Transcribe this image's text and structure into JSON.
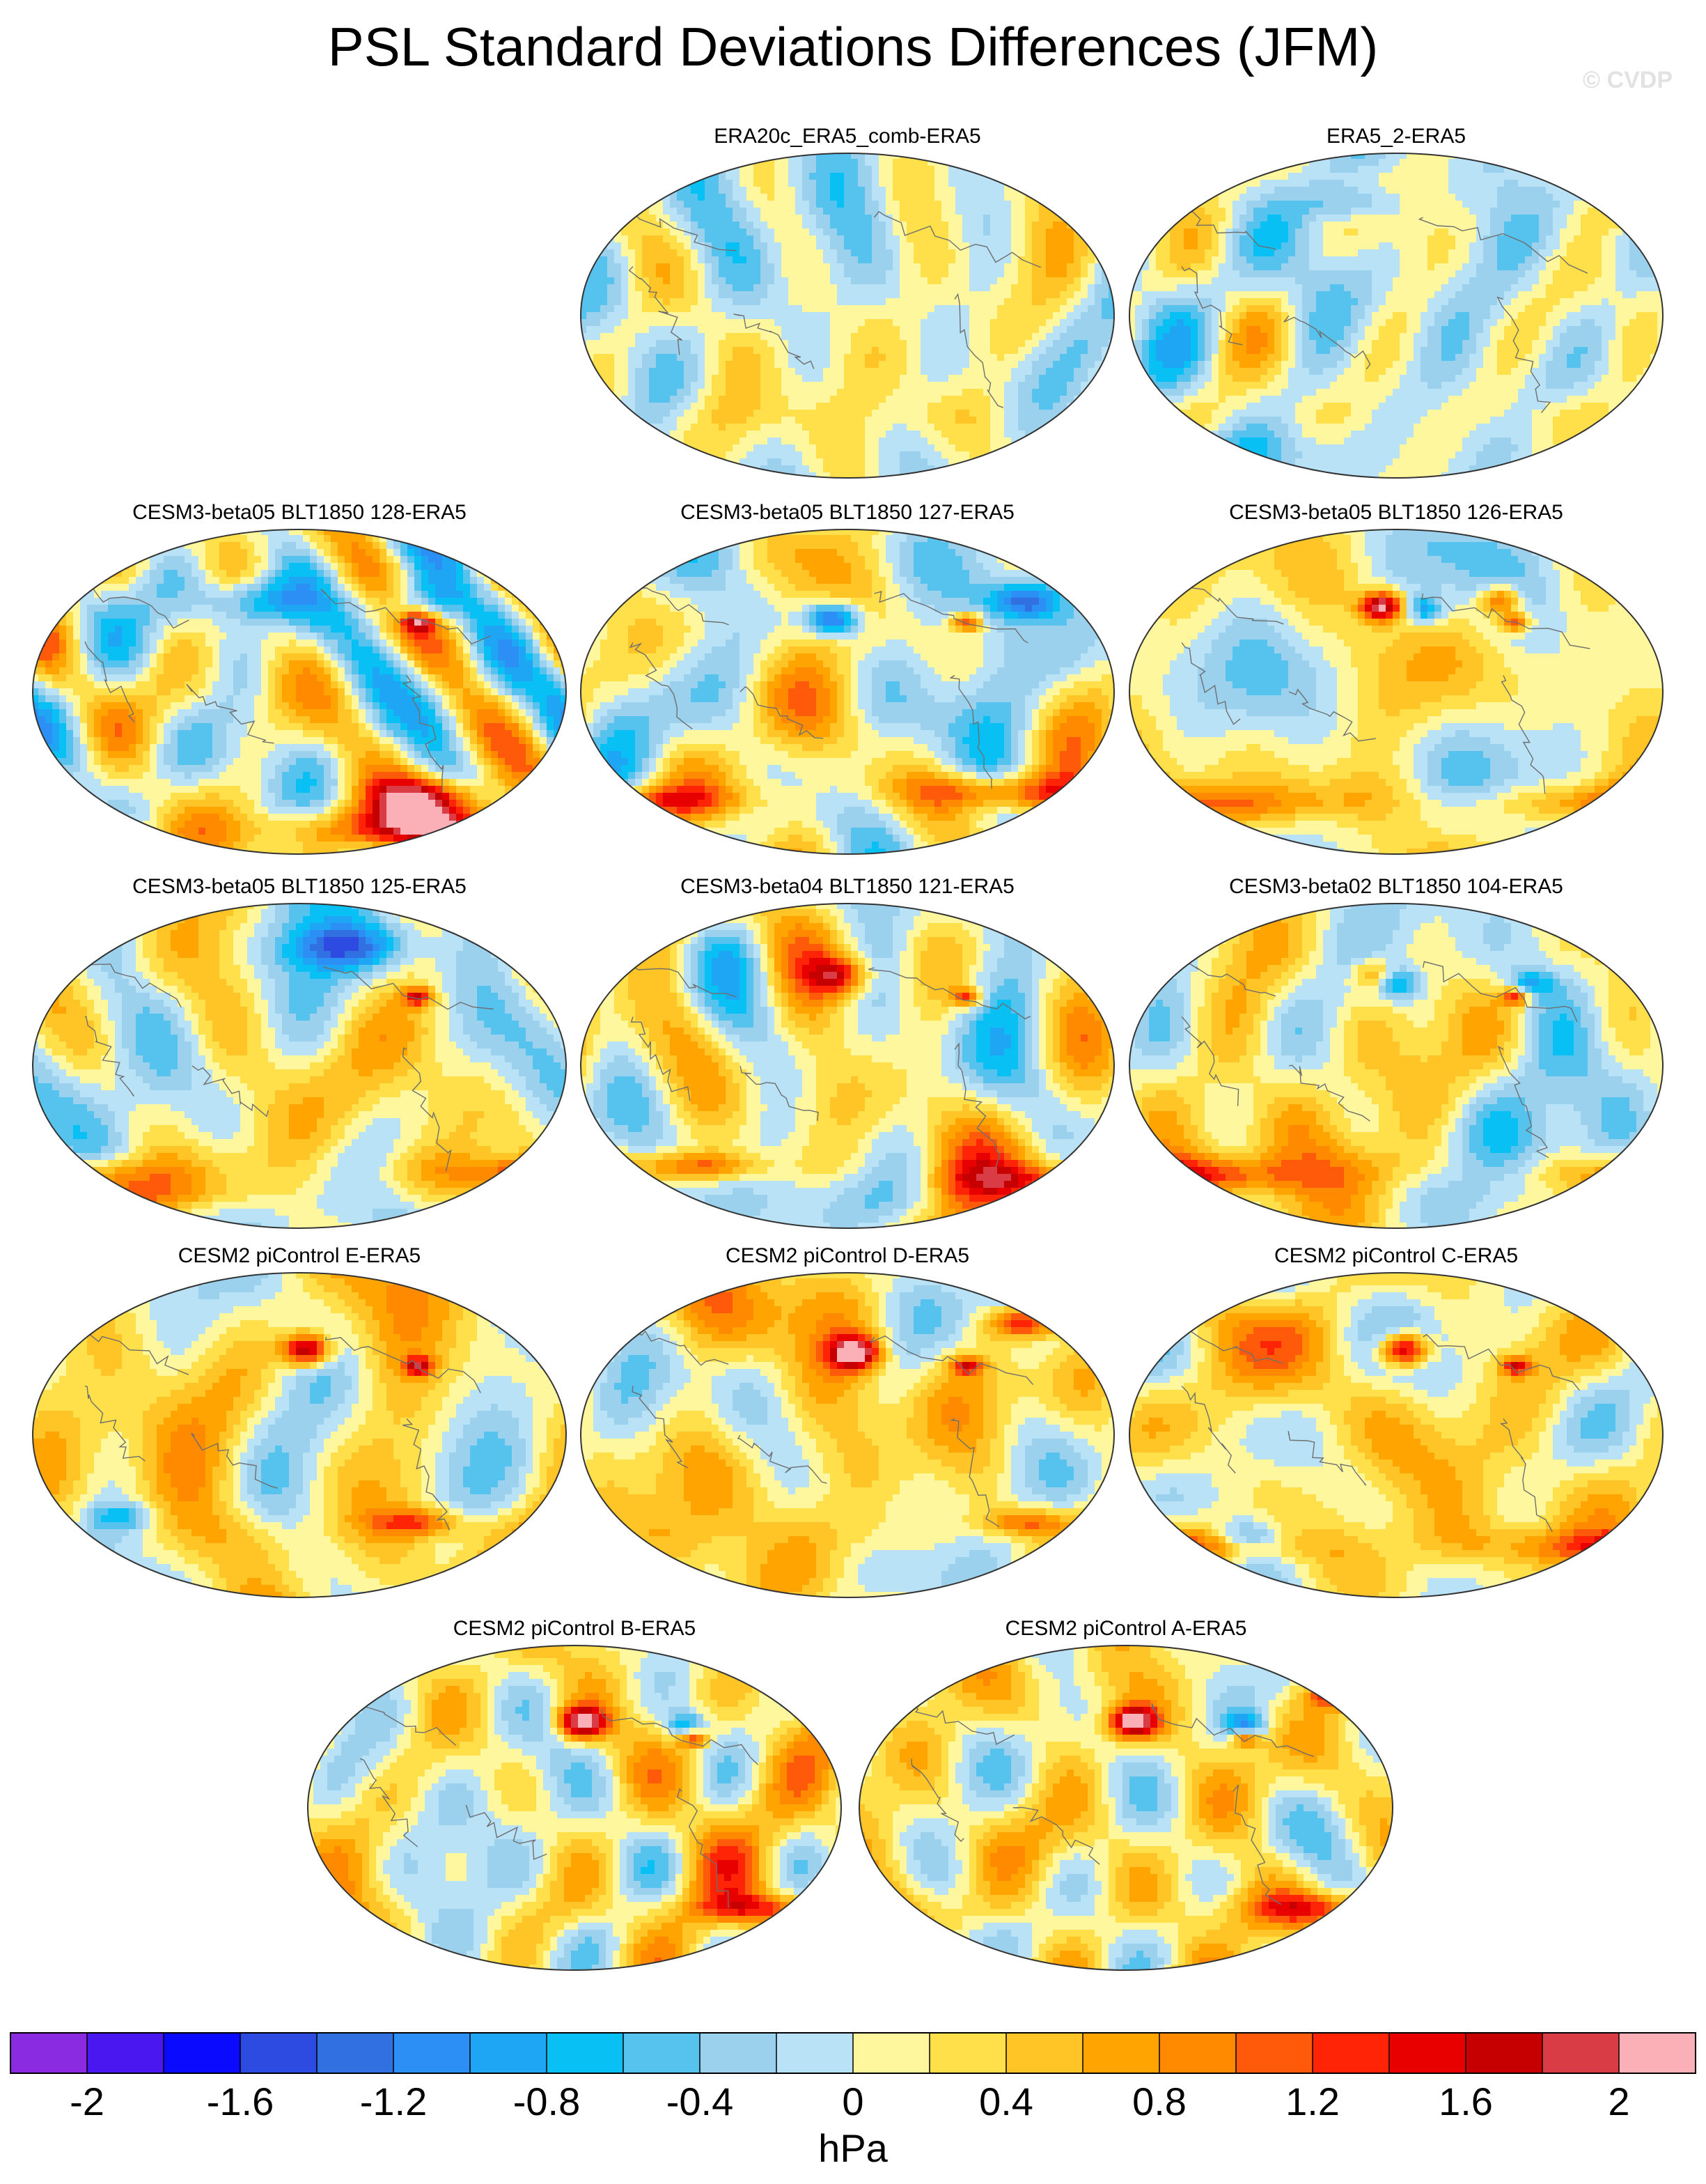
{
  "title": "PSL Standard Deviations Differences (JFM)",
  "watermark": "© CVDP",
  "panels": [
    {
      "label": "ERA20c_ERA5_comb-ERA5",
      "row": 0,
      "col": 1,
      "seed": 11,
      "amp": 0.35,
      "bias": 0.02,
      "features": [
        [
          0,
          -72,
          60,
          10,
          0.5
        ]
      ]
    },
    {
      "label": "ERA5_2-ERA5",
      "row": 0,
      "col": 2,
      "seed": 23,
      "amp": 0.35,
      "bias": -0.06,
      "features": [
        [
          -20,
          55,
          30,
          10,
          0.5
        ],
        [
          150,
          62,
          30,
          10,
          -0.6
        ],
        [
          20,
          -72,
          60,
          8,
          -0.3
        ]
      ]
    },
    {
      "label": "CESM3-beta05 BLT1850 128-ERA5",
      "row": 1,
      "col": 0,
      "seed": 37,
      "amp": 0.55,
      "bias": 0.05,
      "features": [
        [
          -60,
          -75,
          110,
          12,
          2.0
        ],
        [
          -90,
          -58,
          40,
          10,
          1.2
        ],
        [
          150,
          50,
          30,
          12,
          -0.9
        ],
        [
          260,
          50,
          30,
          12,
          -0.9
        ],
        [
          -100,
          38,
          10,
          5,
          1.3
        ]
      ]
    },
    {
      "label": "CESM3-beta05 BLT1850 127-ERA5",
      "row": 1,
      "col": 1,
      "seed": 41,
      "amp": 0.5,
      "bias": 0.05,
      "features": [
        [
          170,
          40,
          18,
          9,
          -1.6
        ],
        [
          300,
          50,
          25,
          10,
          -1.3
        ],
        [
          -100,
          38,
          10,
          5,
          1.3
        ],
        [
          -80,
          -55,
          60,
          10,
          1.0
        ],
        [
          40,
          -60,
          60,
          8,
          1.0
        ]
      ]
    },
    {
      "label": "CESM3-beta05 BLT1850 126-ERA5",
      "row": 1,
      "col": 2,
      "seed": 53,
      "amp": 0.5,
      "bias": 0.08,
      "features": [
        [
          170,
          47,
          14,
          8,
          2.0
        ],
        [
          250,
          50,
          14,
          8,
          1.3
        ],
        [
          200,
          45,
          12,
          8,
          -1.0
        ],
        [
          -100,
          38,
          10,
          5,
          1.3
        ],
        [
          0,
          -62,
          120,
          10,
          1.0
        ]
      ]
    },
    {
      "label": "CESM3-beta05 BLT1850 125-ERA5",
      "row": 2,
      "col": 0,
      "seed": 67,
      "amp": 0.5,
      "bias": 0.08,
      "features": [
        [
          -150,
          65,
          40,
          12,
          -1.0
        ],
        [
          -100,
          38,
          10,
          5,
          1.3
        ],
        [
          30,
          -70,
          90,
          10,
          1.0
        ],
        [
          0,
          -58,
          80,
          8,
          0.9
        ]
      ]
    },
    {
      "label": "CESM3-beta04 BLT1850 121-ERA5",
      "row": 2,
      "col": 1,
      "seed": 71,
      "amp": 0.5,
      "bias": 0.12,
      "features": [
        [
          175,
          50,
          20,
          10,
          1.2
        ],
        [
          -100,
          38,
          10,
          5,
          1.3
        ],
        [
          80,
          -55,
          40,
          8,
          1.1
        ],
        [
          -40,
          -62,
          60,
          8,
          0.8
        ]
      ]
    },
    {
      "label": "CESM3-beta02 BLT1850 104-ERA5",
      "row": 2,
      "col": 2,
      "seed": 83,
      "amp": 0.5,
      "bias": 0.1,
      "features": [
        [
          180,
          45,
          16,
          9,
          -1.0
        ],
        [
          165,
          50,
          14,
          8,
          0.9
        ],
        [
          -100,
          38,
          10,
          5,
          1.3
        ],
        [
          20,
          -60,
          90,
          10,
          1.2
        ],
        [
          270,
          45,
          16,
          8,
          -0.8
        ]
      ]
    },
    {
      "label": "CESM2 piControl E-ERA5",
      "row": 3,
      "col": 0,
      "seed": 97,
      "amp": 0.45,
      "bias": 0.2,
      "features": [
        [
          185,
          47,
          16,
          9,
          2.0
        ],
        [
          -100,
          38,
          10,
          5,
          1.3
        ],
        [
          -100,
          -48,
          30,
          8,
          1.0
        ],
        [
          60,
          -45,
          20,
          8,
          -0.7
        ]
      ]
    },
    {
      "label": "CESM2 piControl D-ERA5",
      "row": 3,
      "col": 1,
      "seed": 101,
      "amp": 0.45,
      "bias": 0.22,
      "features": [
        [
          185,
          45,
          16,
          9,
          2.0
        ],
        [
          300,
          62,
          25,
          9,
          1.6
        ],
        [
          -100,
          38,
          10,
          5,
          1.3
        ],
        [
          -60,
          -48,
          30,
          8,
          1.0
        ]
      ]
    },
    {
      "label": "CESM2 piControl C-ERA5",
      "row": 3,
      "col": 2,
      "seed": 113,
      "amp": 0.45,
      "bias": 0.22,
      "features": [
        [
          185,
          47,
          16,
          9,
          2.0
        ],
        [
          -100,
          38,
          10,
          5,
          1.3
        ],
        [
          0,
          -62,
          100,
          10,
          1.1
        ],
        [
          80,
          -55,
          20,
          8,
          -0.7
        ]
      ]
    },
    {
      "label": "CESM2 piControl B-ERA5",
      "row": 4,
      "col": 0.5,
      "seed": 127,
      "amp": 0.45,
      "bias": 0.2,
      "features": [
        [
          185,
          47,
          16,
          9,
          2.0
        ],
        [
          255,
          45,
          14,
          8,
          -1.0
        ],
        [
          -100,
          38,
          10,
          5,
          1.3
        ],
        [
          -60,
          -55,
          40,
          8,
          0.9
        ]
      ]
    },
    {
      "label": "CESM2 piControl A-ERA5",
      "row": 4,
      "col": 1.5,
      "seed": 131,
      "amp": 0.45,
      "bias": 0.2,
      "features": [
        [
          185,
          47,
          16,
          9,
          2.0
        ],
        [
          260,
          45,
          14,
          8,
          -1.0
        ],
        [
          320,
          62,
          20,
          8,
          1.2
        ],
        [
          -100,
          38,
          10,
          5,
          1.3
        ],
        [
          -50,
          -55,
          40,
          8,
          0.9
        ]
      ]
    }
  ],
  "colorbar": {
    "unit": "hPa",
    "levels": [
      -2,
      -1.8,
      -1.6,
      -1.4,
      -1.2,
      -1,
      -0.8,
      -0.6,
      -0.4,
      -0.2,
      0,
      0.2,
      0.4,
      0.6,
      0.8,
      1,
      1.2,
      1.4,
      1.6,
      1.8,
      2
    ],
    "tick_labels": [
      "-2",
      "-1.6",
      "-1.2",
      "-0.8",
      "-0.4",
      "0",
      "0.4",
      "0.8",
      "1.2",
      "1.6",
      "2"
    ],
    "colors": [
      "#8a2be2",
      "#4b17f0",
      "#0a0aff",
      "#2d4be0",
      "#3070e0",
      "#2b8ff5",
      "#1ea6f5",
      "#09c0f5",
      "#56c2ee",
      "#9cd1ee",
      "#b9e2f7",
      "#fff79e",
      "#ffe04a",
      "#ffc425",
      "#ffa400",
      "#ff8a00",
      "#ff5a0a",
      "#ff2406",
      "#e80000",
      "#c60000",
      "#da3c45",
      "#fbb0b7"
    ]
  }
}
